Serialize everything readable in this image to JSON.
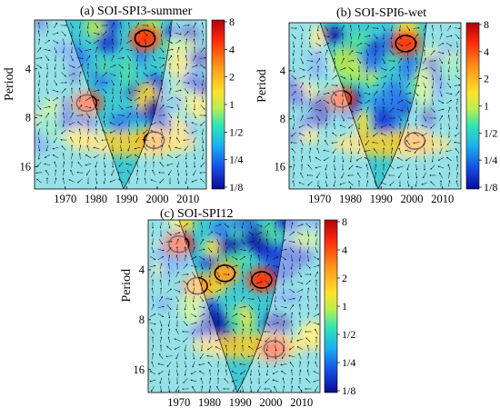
{
  "chart_data": [
    {
      "type": "heatmap",
      "title": "(a) SOI-SPI3-summer",
      "ylabel": "Period",
      "x_ticks": [
        "1970",
        "1980",
        "1990",
        "2000",
        "2010"
      ],
      "y_ticks": [
        "4",
        "8",
        "16"
      ],
      "colorbar_ticks": [
        "8",
        "4",
        "2",
        "1",
        "1/2",
        "1/4",
        "1/8"
      ],
      "hot_regions": [
        {
          "year": 1977,
          "period": 6.5,
          "power": "4"
        },
        {
          "year": 1996,
          "period": 2.6,
          "power": "4"
        },
        {
          "year": 1999,
          "period": 11,
          "power": "2"
        }
      ]
    },
    {
      "type": "heatmap",
      "title": "(b) SOI-SPI6-wet",
      "ylabel": "Period",
      "x_ticks": [
        "1970",
        "1980",
        "1990",
        "2000",
        "2010"
      ],
      "y_ticks": [
        "4",
        "8",
        "16"
      ],
      "colorbar_ticks": [
        "8",
        "4",
        "2",
        "1",
        "1/2",
        "1/4",
        "1/8"
      ],
      "hot_regions": [
        {
          "year": 1977,
          "period": 6,
          "power": "4"
        },
        {
          "year": 1998,
          "period": 2.7,
          "power": "4"
        },
        {
          "year": 2001,
          "period": 11,
          "power": "2"
        }
      ]
    },
    {
      "type": "heatmap",
      "title": "(c) SOI-SPI12",
      "ylabel": "Period",
      "x_ticks": [
        "1970",
        "1980",
        "1990",
        "2000",
        "2010"
      ],
      "y_ticks": [
        "4",
        "8",
        "16"
      ],
      "colorbar_ticks": [
        "8",
        "4",
        "2",
        "1",
        "1/2",
        "1/4",
        "1/8"
      ],
      "hot_regions": [
        {
          "year": 1970,
          "period": 2.8,
          "power": "4"
        },
        {
          "year": 1976,
          "period": 5,
          "power": "2"
        },
        {
          "year": 1985,
          "period": 4.2,
          "power": "2"
        },
        {
          "year": 1997,
          "period": 4.6,
          "power": "4"
        },
        {
          "year": 2001,
          "period": 12,
          "power": "4"
        }
      ]
    }
  ]
}
